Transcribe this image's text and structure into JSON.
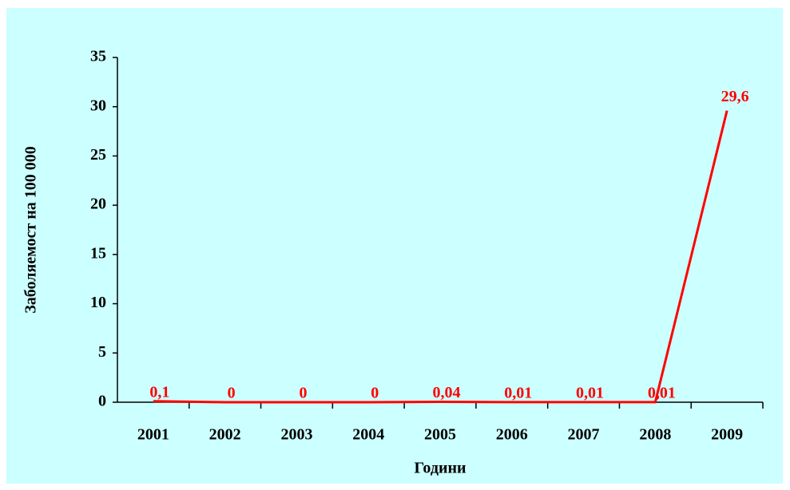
{
  "chart_data": {
    "type": "line",
    "x_label": "Години",
    "y_label": "Заболяемост на 100 000",
    "categories": [
      "2001",
      "2002",
      "2003",
      "2004",
      "2005",
      "2006",
      "2007",
      "2008",
      "2009"
    ],
    "series": [
      {
        "name": "Заболяемост",
        "color": "#ff0000",
        "values": [
          0.1,
          0,
          0,
          0,
          0.04,
          0.01,
          0.01,
          0.01,
          29.6
        ],
        "value_labels": [
          "0,1",
          "0",
          "0",
          "0",
          "0,04",
          "0,01",
          "0,01",
          "0,01",
          "29,6"
        ]
      }
    ],
    "ylim": [
      0,
      35
    ],
    "yticks": [
      0,
      5,
      10,
      15,
      20,
      25,
      30,
      35
    ],
    "grid": false
  }
}
